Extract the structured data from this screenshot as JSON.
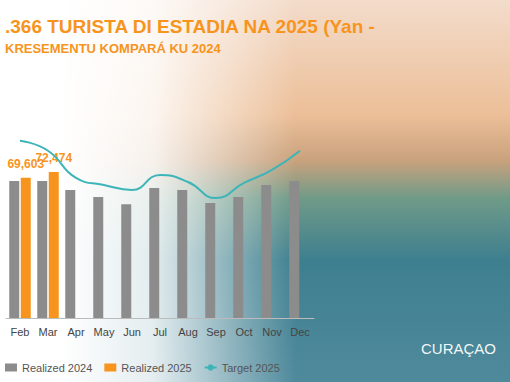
{
  "chart_data": {
    "type": "bar",
    "title": ".366 TURISTA DI ESTADIA NA 2025 (Yan -",
    "subtitle": "KRESEMENTU KOMPARÁ KU 2024",
    "annotations": [
      "CURAÇAO"
    ],
    "categories": [
      "Feb",
      "Mar",
      "Apr",
      "May",
      "Jun",
      "Jul",
      "Aug",
      "Sep",
      "Oct",
      "Nov",
      "Dec"
    ],
    "series": [
      {
        "name": "Realized 2024",
        "type": "bar",
        "color": "#8c8c8c",
        "values": [
          68000,
          68000,
          63500,
          60000,
          56500,
          64500,
          63500,
          57000,
          60000,
          66000,
          68000
        ]
      },
      {
        "name": "Realized 2025",
        "type": "bar",
        "color": "#f7941d",
        "data_labels": true,
        "values": [
          69603,
          72474,
          null,
          null,
          null,
          null,
          null,
          null,
          null,
          null,
          null
        ],
        "value_labels": [
          "69,603",
          "72,474",
          null,
          null,
          null,
          null,
          null,
          null,
          null,
          null,
          null
        ]
      },
      {
        "name": "Target 2025",
        "type": "line",
        "color": "#3db5b8",
        "marker": "none",
        "line_style": "solid",
        "values": [
          88000,
          83000,
          69500,
          66000,
          63500,
          71000,
          67500,
          59500,
          67000,
          73500,
          83000
        ]
      }
    ],
    "ylim": [
      0,
      130000
    ],
    "grid": false,
    "legend": "bottom-left",
    "tick_labels": "x"
  }
}
